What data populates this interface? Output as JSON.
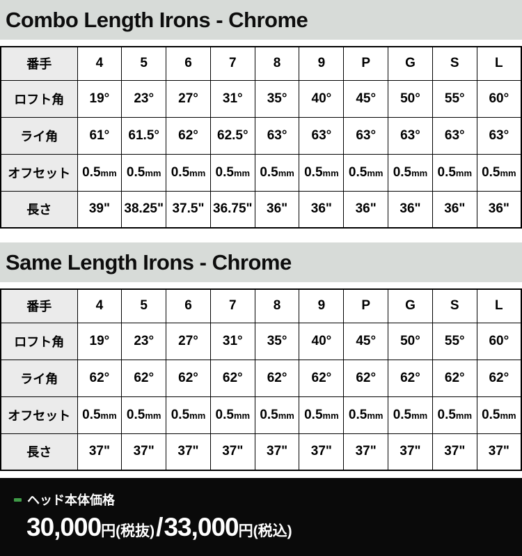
{
  "tables": [
    {
      "title": "Combo Length Irons - Chrome",
      "rows": [
        {
          "label": "番手",
          "values": [
            "4",
            "5",
            "6",
            "7",
            "8",
            "9",
            "P",
            "G",
            "S",
            "L"
          ]
        },
        {
          "label": "ロフト角",
          "values": [
            "19°",
            "23°",
            "27°",
            "31°",
            "35°",
            "40°",
            "45°",
            "50°",
            "55°",
            "60°"
          ]
        },
        {
          "label": "ライ角",
          "values": [
            "61°",
            "61.5°",
            "62°",
            "62.5°",
            "63°",
            "63°",
            "63°",
            "63°",
            "63°",
            "63°"
          ]
        },
        {
          "label": "オフセット",
          "values": [
            "0.5mm",
            "0.5mm",
            "0.5mm",
            "0.5mm",
            "0.5mm",
            "0.5mm",
            "0.5mm",
            "0.5mm",
            "0.5mm",
            "0.5mm"
          ]
        },
        {
          "label": "長さ",
          "values": [
            "39\"",
            "38.25\"",
            "37.5\"",
            "36.75\"",
            "36\"",
            "36\"",
            "36\"",
            "36\"",
            "36\"",
            "36\""
          ]
        }
      ]
    },
    {
      "title": "Same Length Irons - Chrome",
      "rows": [
        {
          "label": "番手",
          "values": [
            "4",
            "5",
            "6",
            "7",
            "8",
            "9",
            "P",
            "G",
            "S",
            "L"
          ]
        },
        {
          "label": "ロフト角",
          "values": [
            "19°",
            "23°",
            "27°",
            "31°",
            "35°",
            "40°",
            "45°",
            "50°",
            "55°",
            "60°"
          ]
        },
        {
          "label": "ライ角",
          "values": [
            "62°",
            "62°",
            "62°",
            "62°",
            "62°",
            "62°",
            "62°",
            "62°",
            "62°",
            "62°"
          ]
        },
        {
          "label": "オフセット",
          "values": [
            "0.5mm",
            "0.5mm",
            "0.5mm",
            "0.5mm",
            "0.5mm",
            "0.5mm",
            "0.5mm",
            "0.5mm",
            "0.5mm",
            "0.5mm"
          ]
        },
        {
          "label": "長さ",
          "values": [
            "37\"",
            "37\"",
            "37\"",
            "37\"",
            "37\"",
            "37\"",
            "37\"",
            "37\"",
            "37\"",
            "37\""
          ]
        }
      ]
    }
  ],
  "price": {
    "label": "ヘッド本体価格",
    "amount_excl": "30,000",
    "unit_excl": "円(税抜)",
    "separator": "/",
    "amount_incl": "33,000",
    "unit_incl": "円(税込)"
  },
  "colors": {
    "title_bar_bg": "#d7dbd8",
    "label_cell_bg": "#ebebeb",
    "table_border": "#000000",
    "banner_bg": "#0a0a0a",
    "banner_text": "#ffffff",
    "bullet_green": "#3f9b47"
  }
}
